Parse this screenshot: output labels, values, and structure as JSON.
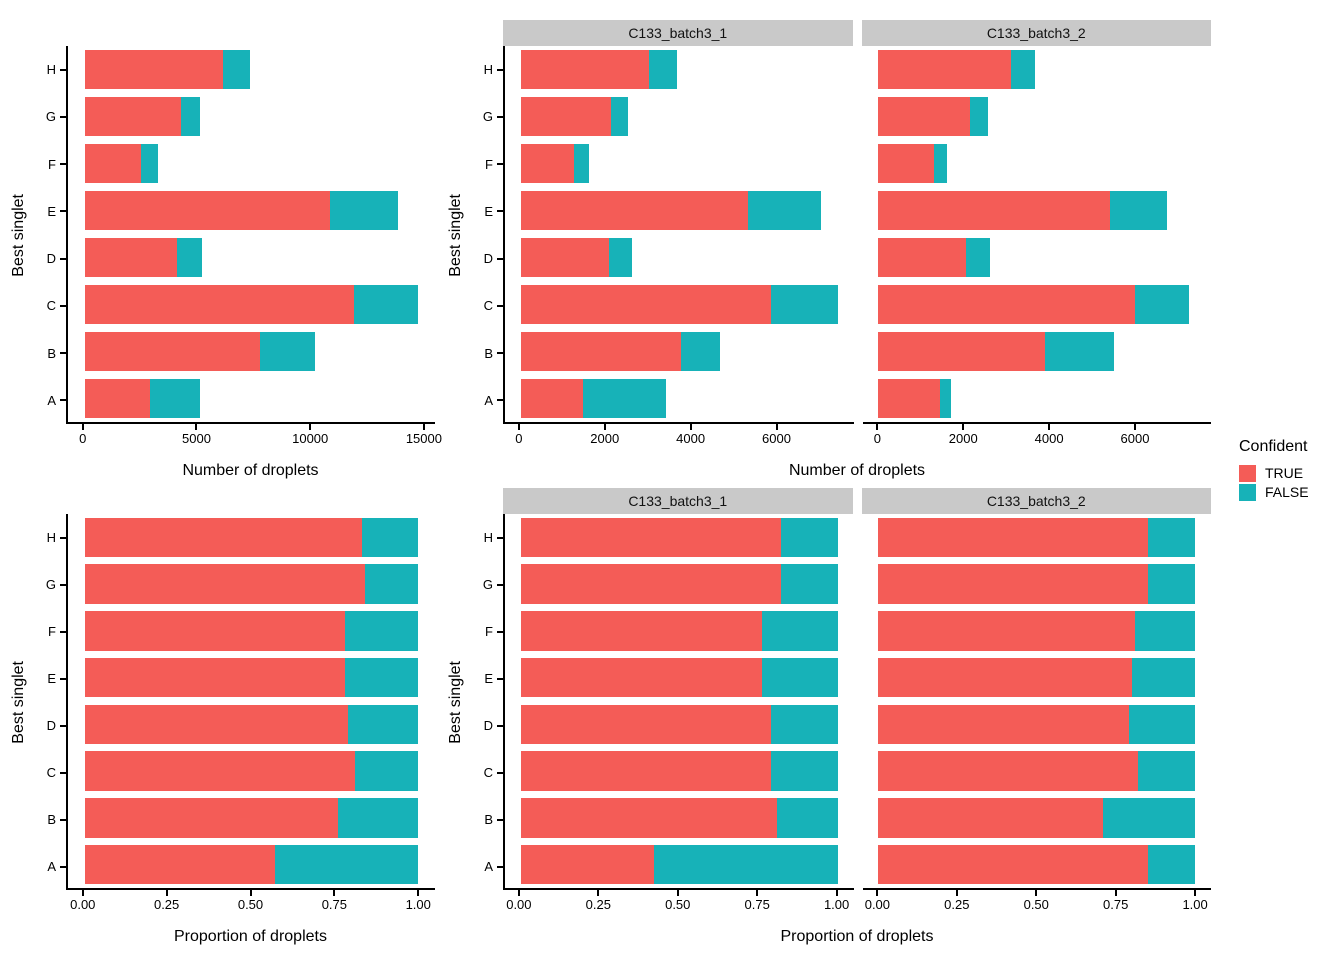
{
  "figure": {
    "legend": {
      "title": "Confident",
      "entries": [
        {
          "label": "TRUE",
          "color": "#F45C57"
        },
        {
          "label": "FALSE",
          "color": "#17B2B8"
        }
      ]
    },
    "strip_background": "#C9C9C9",
    "facet_labels": [
      "C133_batch3_1",
      "C133_batch3_2"
    ]
  },
  "chart_data": [
    {
      "id": "counts-combined",
      "type": "bar",
      "orientation": "horizontal",
      "stacked": true,
      "grid": false,
      "xlabel": "Number of droplets",
      "ylabel": "Best singlet",
      "categories": [
        "A",
        "B",
        "C",
        "D",
        "E",
        "F",
        "G",
        "H"
      ],
      "xticks": [
        0,
        5000,
        10000,
        15000
      ],
      "xtick_labels": [
        "0",
        "5000",
        "10000",
        "15000"
      ],
      "xlim": [
        0,
        14750
      ],
      "panels": [
        {
          "facet": null,
          "series": [
            {
              "name": "TRUE",
              "values": [
                2900,
                7750,
                11900,
                4100,
                10850,
                2500,
                4250,
                6100
              ]
            },
            {
              "name": "FALSE",
              "values": [
                2200,
                2450,
                2850,
                1100,
                3000,
                750,
                850,
                1200
              ]
            }
          ]
        }
      ]
    },
    {
      "id": "counts-by-batch",
      "type": "bar",
      "orientation": "horizontal",
      "stacked": true,
      "grid": false,
      "xlabel": "Number of droplets",
      "ylabel": "Best singlet",
      "categories": [
        "A",
        "B",
        "C",
        "D",
        "E",
        "F",
        "G",
        "H"
      ],
      "xticks": [
        0,
        2000,
        4000,
        6000
      ],
      "xtick_labels": [
        "0",
        "2000",
        "4000",
        "6000"
      ],
      "xlim": [
        0,
        7400
      ],
      "panels": [
        {
          "facet": "C133_batch3_1",
          "series": [
            {
              "name": "TRUE",
              "values": [
                1450,
                3750,
                5850,
                2050,
                5300,
                1250,
                2100,
                3000
              ]
            },
            {
              "name": "FALSE",
              "values": [
                1950,
                900,
                1550,
                550,
                1700,
                350,
                400,
                650
              ]
            }
          ]
        },
        {
          "facet": "C133_batch3_2",
          "series": [
            {
              "name": "TRUE",
              "values": [
                1450,
                3900,
                6000,
                2050,
                5400,
                1300,
                2150,
                3100
              ]
            },
            {
              "name": "FALSE",
              "values": [
                250,
                1600,
                1250,
                550,
                1350,
                300,
                400,
                550
              ]
            }
          ]
        }
      ]
    },
    {
      "id": "proportions-combined",
      "type": "bar",
      "orientation": "horizontal",
      "stacked": true,
      "grid": false,
      "xlabel": "Proportion of droplets",
      "ylabel": "Best singlet",
      "categories": [
        "A",
        "B",
        "C",
        "D",
        "E",
        "F",
        "G",
        "H"
      ],
      "xticks": [
        0,
        0.25,
        0.5,
        0.75,
        1
      ],
      "xtick_labels": [
        "0.00",
        "0.25",
        "0.50",
        "0.75",
        "1.00"
      ],
      "xlim": [
        0,
        1
      ],
      "panels": [
        {
          "facet": null,
          "series": [
            {
              "name": "TRUE",
              "values": [
                0.57,
                0.76,
                0.81,
                0.79,
                0.78,
                0.78,
                0.84,
                0.83
              ]
            },
            {
              "name": "FALSE",
              "values": [
                0.43,
                0.24,
                0.19,
                0.21,
                0.22,
                0.22,
                0.16,
                0.17
              ]
            }
          ]
        }
      ]
    },
    {
      "id": "proportions-by-batch",
      "type": "bar",
      "orientation": "horizontal",
      "stacked": true,
      "grid": false,
      "xlabel": "Proportion of droplets",
      "ylabel": "Best singlet",
      "categories": [
        "A",
        "B",
        "C",
        "D",
        "E",
        "F",
        "G",
        "H"
      ],
      "xticks": [
        0,
        0.25,
        0.5,
        0.75,
        1
      ],
      "xtick_labels": [
        "0.00",
        "0.25",
        "0.50",
        "0.75",
        "1.00"
      ],
      "xlim": [
        0,
        1
      ],
      "panels": [
        {
          "facet": "C133_batch3_1",
          "series": [
            {
              "name": "TRUE",
              "values": [
                0.42,
                0.81,
                0.79,
                0.79,
                0.76,
                0.76,
                0.82,
                0.82
              ]
            },
            {
              "name": "FALSE",
              "values": [
                0.58,
                0.19,
                0.21,
                0.21,
                0.24,
                0.24,
                0.18,
                0.18
              ]
            }
          ]
        },
        {
          "facet": "C133_batch3_2",
          "series": [
            {
              "name": "TRUE",
              "values": [
                0.85,
                0.71,
                0.82,
                0.79,
                0.8,
                0.81,
                0.85,
                0.85
              ]
            },
            {
              "name": "FALSE",
              "values": [
                0.15,
                0.29,
                0.18,
                0.21,
                0.2,
                0.19,
                0.15,
                0.15
              ]
            }
          ]
        }
      ]
    }
  ]
}
